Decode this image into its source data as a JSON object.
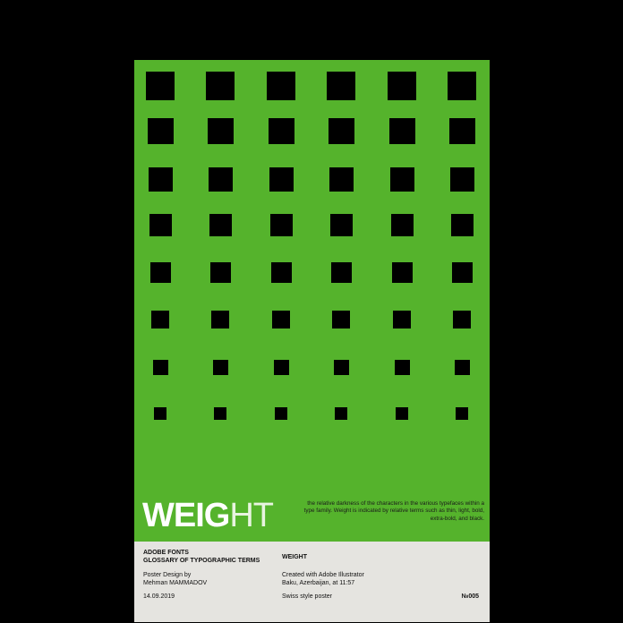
{
  "poster": {
    "background": "#55b32c",
    "square_color": "#000000",
    "title": {
      "bold_part": "WEIG",
      "light_part": "HT"
    },
    "description": "the relative darkness of the characters in the various typefaces within a type family. Weight is indicated by relative terms such as thin, light, bold, extra-bold, and black.",
    "info": {
      "header_left_line1": "ADOBE FONTS",
      "header_left_line2": "GLOSSARY OF TYPOGRAPHIC TERMS",
      "header_right": "WEIGHT",
      "credit_line1": "Poster Design by",
      "credit_line2": "Mehman MAMMADOV",
      "created_line1": "Created with Adobe Illustrator",
      "created_line2": "Baku, Azerbaijan, at 11:57",
      "date": "14.09.2019",
      "style": "Swiss style poster",
      "number": "№005"
    }
  }
}
